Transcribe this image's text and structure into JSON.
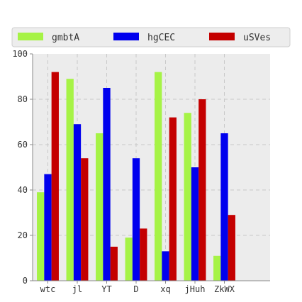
{
  "chart_data": {
    "type": "bar",
    "categories": [
      "wtc",
      "jl",
      "YT",
      "D",
      "xq",
      "jHuh",
      "ZkWX"
    ],
    "series": [
      {
        "name": "gmbtA",
        "color": "#a6f346",
        "values": [
          39,
          89,
          65,
          19,
          92,
          74,
          11
        ]
      },
      {
        "name": "hgCEC",
        "color": "#0000ee",
        "values": [
          47,
          69,
          85,
          54,
          13,
          50,
          65
        ]
      },
      {
        "name": "uSVes",
        "color": "#c40000",
        "values": [
          92,
          54,
          15,
          23,
          72,
          80,
          29
        ]
      }
    ],
    "ylim": [
      0,
      100
    ],
    "yticks": [
      0,
      20,
      40,
      60,
      80,
      100
    ],
    "grid": true,
    "legend_position": "top",
    "plot_background": "#ececec"
  }
}
